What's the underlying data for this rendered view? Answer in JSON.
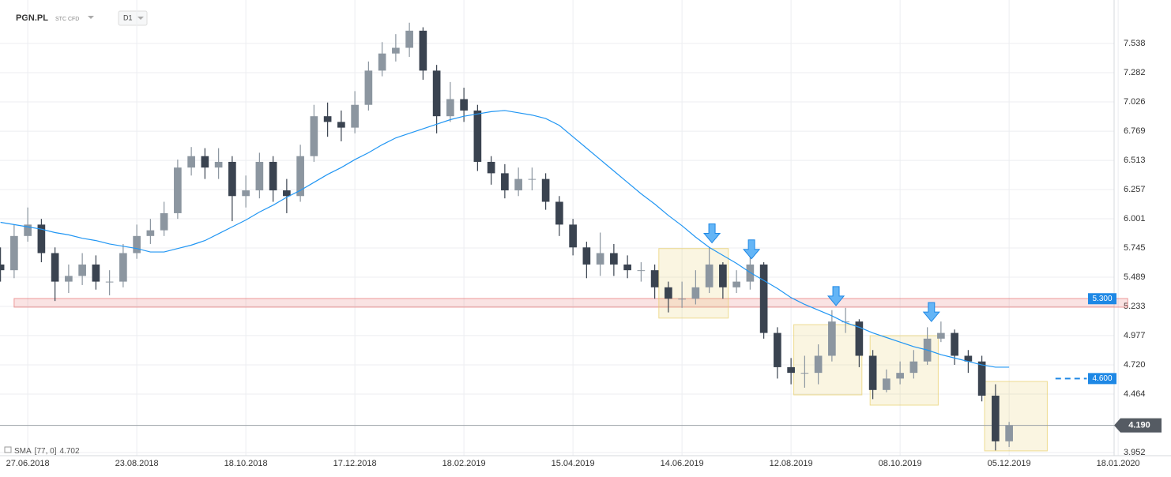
{
  "header": {
    "symbol": "PGN.PL",
    "type": "STC CFD",
    "interval": "D1"
  },
  "chart_data": {
    "type": "candlestick",
    "categories": [
      null,
      null,
      "27.06.2018",
      null,
      null,
      null,
      null,
      null,
      null,
      null,
      "23.08.2018",
      null,
      null,
      null,
      null,
      null,
      null,
      null,
      "18.10.2018",
      null,
      null,
      null,
      null,
      null,
      null,
      null,
      "17.12.2018",
      null,
      null,
      null,
      null,
      null,
      null,
      null,
      "18.02.2019",
      null,
      null,
      null,
      null,
      null,
      null,
      null,
      "15.04.2019",
      null,
      null,
      null,
      null,
      null,
      null,
      null,
      "14.06.2019",
      null,
      null,
      null,
      null,
      null,
      null,
      null,
      "12.08.2019",
      null,
      null,
      null,
      null,
      null,
      null,
      null,
      "08.10.2019",
      null,
      null,
      null,
      null,
      null,
      null,
      null,
      "05.12.2019",
      null,
      null,
      null,
      null,
      null,
      null,
      null,
      "18.01.2020"
    ],
    "open": [
      5.6,
      5.55,
      5.85,
      5.95,
      5.7,
      5.45,
      5.5,
      5.6,
      5.45,
      5.45,
      5.7,
      5.85,
      5.9,
      6.05,
      6.45,
      6.55,
      6.45,
      6.5,
      6.2,
      6.25,
      6.5,
      6.25,
      6.2,
      6.55,
      6.9,
      6.85,
      6.8,
      7.0,
      7.3,
      7.45,
      7.5,
      7.65,
      7.3,
      6.9,
      7.05,
      6.95,
      6.5,
      6.4,
      6.25,
      6.35,
      6.35,
      6.15,
      5.95,
      5.75,
      5.6,
      5.7,
      5.6,
      5.55,
      5.55,
      5.4,
      5.3,
      5.3,
      5.4,
      5.6,
      5.4,
      5.45,
      5.6,
      5.0,
      4.7,
      4.65,
      4.65,
      4.8,
      5.1,
      5.1,
      4.8,
      4.5,
      4.6,
      4.65,
      4.75,
      4.95,
      5.0,
      4.8,
      4.75,
      4.45,
      4.05,
      null,
      null,
      null,
      null,
      null,
      null,
      null,
      null
    ],
    "high": [
      5.75,
      5.95,
      6.1,
      6.0,
      5.75,
      5.6,
      5.7,
      5.68,
      5.55,
      5.78,
      5.95,
      6.0,
      6.15,
      6.52,
      6.63,
      6.62,
      6.62,
      6.55,
      6.38,
      6.58,
      6.55,
      6.35,
      6.65,
      7.0,
      7.02,
      6.95,
      7.12,
      7.38,
      7.55,
      7.62,
      7.72,
      7.68,
      7.35,
      7.2,
      7.15,
      7.0,
      6.55,
      6.48,
      6.45,
      6.45,
      6.4,
      6.2,
      6.0,
      5.8,
      5.88,
      5.78,
      5.68,
      5.62,
      5.6,
      5.45,
      5.45,
      5.55,
      5.75,
      5.62,
      5.55,
      5.7,
      5.62,
      5.05,
      4.78,
      4.8,
      4.9,
      5.2,
      5.22,
      5.12,
      4.85,
      4.68,
      4.75,
      4.85,
      5.05,
      5.1,
      5.03,
      4.85,
      4.8,
      4.55,
      4.22,
      null,
      null,
      null,
      null,
      null,
      null,
      null,
      null
    ],
    "low": [
      5.45,
      5.48,
      5.8,
      5.62,
      5.28,
      5.35,
      5.42,
      5.38,
      5.33,
      5.4,
      5.65,
      5.78,
      5.85,
      6.0,
      6.38,
      6.35,
      6.35,
      5.98,
      6.1,
      6.18,
      6.15,
      6.05,
      6.15,
      6.5,
      6.72,
      6.68,
      6.75,
      6.95,
      7.25,
      7.38,
      7.42,
      7.22,
      6.75,
      6.85,
      6.85,
      6.42,
      6.3,
      6.18,
      6.2,
      6.25,
      6.08,
      5.85,
      5.68,
      5.48,
      5.5,
      5.5,
      5.48,
      5.45,
      5.3,
      5.18,
      5.22,
      5.25,
      5.35,
      5.3,
      5.35,
      5.38,
      4.95,
      4.6,
      4.55,
      4.52,
      4.55,
      4.75,
      5.0,
      4.7,
      4.42,
      4.48,
      4.55,
      4.6,
      4.72,
      4.92,
      4.72,
      4.65,
      4.4,
      3.97,
      4.0,
      null,
      null,
      null,
      null,
      null,
      null,
      null,
      null
    ],
    "close": [
      5.55,
      5.85,
      5.95,
      5.7,
      5.45,
      5.5,
      5.6,
      5.45,
      5.45,
      5.7,
      5.85,
      5.9,
      6.05,
      6.45,
      6.55,
      6.45,
      6.5,
      6.2,
      6.25,
      6.5,
      6.25,
      6.2,
      6.55,
      6.9,
      6.85,
      6.8,
      7.0,
      7.3,
      7.45,
      7.5,
      7.65,
      7.3,
      6.9,
      7.05,
      6.95,
      6.5,
      6.4,
      6.25,
      6.35,
      6.35,
      6.15,
      5.95,
      5.75,
      5.6,
      5.7,
      5.6,
      5.55,
      5.55,
      5.4,
      5.3,
      5.3,
      5.4,
      5.6,
      5.4,
      5.45,
      5.6,
      5.0,
      4.7,
      4.65,
      4.65,
      4.8,
      5.1,
      5.1,
      4.8,
      4.5,
      4.6,
      4.65,
      4.75,
      4.95,
      5.0,
      4.8,
      4.75,
      4.45,
      4.05,
      4.19,
      null,
      null,
      null,
      null,
      null,
      null,
      null,
      null
    ],
    "up_color": "#8c96a0",
    "down_color": "#3a4350",
    "overlays": [
      {
        "name": "SMA",
        "params": "[77, 0]",
        "last_value": 4.702,
        "color": "#2196f3",
        "values": [
          5.97,
          5.95,
          5.93,
          5.91,
          5.88,
          5.86,
          5.83,
          5.81,
          5.78,
          5.76,
          5.74,
          5.71,
          5.71,
          5.74,
          5.77,
          5.81,
          5.87,
          5.93,
          5.99,
          6.06,
          6.12,
          6.19,
          6.25,
          6.32,
          6.39,
          6.45,
          6.52,
          6.58,
          6.65,
          6.71,
          6.75,
          6.79,
          6.83,
          6.87,
          6.9,
          6.92,
          6.94,
          6.95,
          6.93,
          6.91,
          6.88,
          6.82,
          6.72,
          6.62,
          6.52,
          6.42,
          6.32,
          6.22,
          6.13,
          6.03,
          5.94,
          5.84,
          5.75,
          5.68,
          5.61,
          5.53,
          5.46,
          5.39,
          5.31,
          5.25,
          5.2,
          5.15,
          5.09,
          5.05,
          5.0,
          4.96,
          4.92,
          4.88,
          4.85,
          4.81,
          4.78,
          4.75,
          4.72,
          4.7,
          4.7,
          null,
          null,
          null,
          null,
          null,
          null,
          null,
          null
        ]
      }
    ],
    "ylim": [
      3.924,
      7.919
    ],
    "yticks": [
      3.952,
      4.464,
      {
        "value": 4.72,
        "label": "4.720"
      },
      4.977,
      5.233,
      5.489,
      5.745,
      6.001,
      6.257,
      6.513,
      6.769,
      7.026,
      7.282,
      7.538
    ],
    "grid": true,
    "zones": [
      {
        "color": "#e57373",
        "x": [
          1.0,
          82.7
        ],
        "y": [
          5.226,
          5.302
        ]
      },
      {
        "color": "#e8cf6a",
        "x": [
          48.3,
          53.4
        ],
        "y": [
          5.13,
          5.74
        ]
      },
      {
        "color": "#e8cf6a",
        "x": [
          58.2,
          63.2
        ],
        "y": [
          4.457,
          5.073
        ]
      },
      {
        "color": "#e8cf6a",
        "x": [
          63.8,
          68.8
        ],
        "y": [
          4.367,
          4.976
        ]
      },
      {
        "color": "#e8cf6a",
        "x": [
          72.2,
          76.8
        ],
        "y": [
          3.966,
          4.575
        ]
      }
    ],
    "arrows": [
      {
        "x": 52.2,
        "y": 5.79
      },
      {
        "x": 55.1,
        "y": 5.65
      },
      {
        "x": 61.3,
        "y": 5.24
      },
      {
        "x": 68.3,
        "y": 5.1
      }
    ],
    "levels": [
      {
        "value": 5.3,
        "label": "5.300",
        "color": "#1e88e5"
      },
      {
        "value": 4.6,
        "label": "4.600",
        "color": "#1e88e5",
        "x": [
          77.4,
          79.7
        ]
      }
    ],
    "last_price": {
      "value": 4.19,
      "label": "4.190",
      "color": "#555b63"
    }
  }
}
